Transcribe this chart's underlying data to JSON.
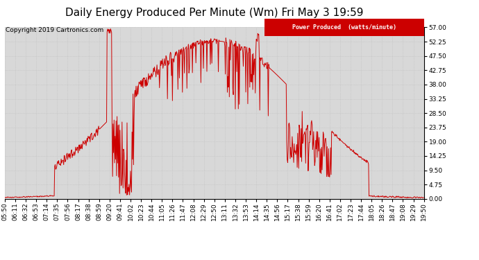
{
  "title": "Daily Energy Produced Per Minute (Wm) Fri May 3 19:59",
  "copyright": "Copyright 2019 Cartronics.com",
  "legend_label": "Power Produced  (watts/minute)",
  "legend_bg": "#cc0000",
  "legend_fg": "#ffffff",
  "line_color": "#cc0000",
  "bg_color": "#ffffff",
  "plot_bg": "#d8d8d8",
  "grid_color": "#bbbbbb",
  "ylim": [
    0,
    57.0
  ],
  "yticks": [
    0.0,
    4.75,
    9.5,
    14.25,
    19.0,
    23.75,
    28.5,
    33.25,
    38.0,
    42.75,
    47.5,
    52.25,
    57.0
  ],
  "title_fontsize": 11,
  "tick_fontsize": 6.5,
  "copyright_fontsize": 6.5,
  "x_labels": [
    "05:50",
    "06:11",
    "06:32",
    "06:53",
    "07:14",
    "07:35",
    "07:56",
    "08:17",
    "08:38",
    "08:59",
    "09:20",
    "09:41",
    "10:02",
    "10:23",
    "10:44",
    "11:05",
    "11:26",
    "11:47",
    "12:08",
    "12:29",
    "12:50",
    "13:11",
    "13:32",
    "13:53",
    "14:14",
    "14:35",
    "14:56",
    "15:17",
    "15:38",
    "15:59",
    "16:20",
    "16:41",
    "17:02",
    "17:23",
    "17:44",
    "18:05",
    "18:26",
    "18:47",
    "19:08",
    "19:29",
    "19:50"
  ]
}
